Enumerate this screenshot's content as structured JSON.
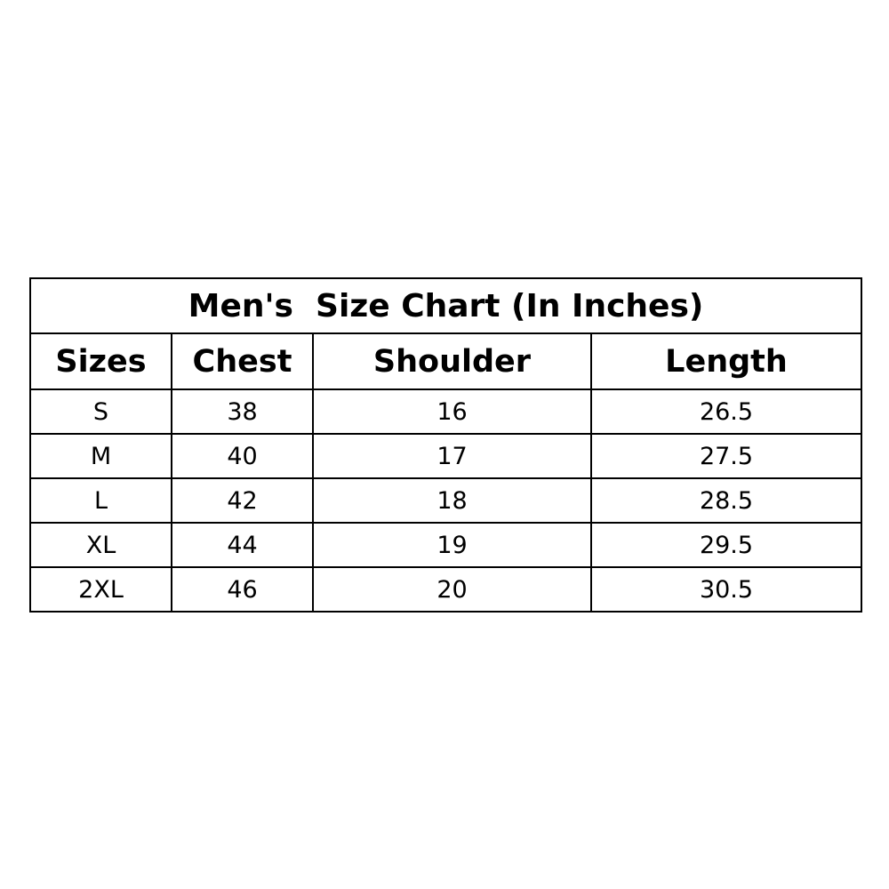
{
  "chart_data": {
    "type": "table",
    "title": "Men's  Size Chart (In Inches)",
    "columns": [
      "Sizes",
      "Chest",
      "Shoulder",
      "Length"
    ],
    "rows": [
      [
        "S",
        "38",
        "16",
        "26.5"
      ],
      [
        "M",
        "40",
        "17",
        "27.5"
      ],
      [
        "L",
        "42",
        "18",
        "28.5"
      ],
      [
        "XL",
        "44",
        "19",
        "29.5"
      ],
      [
        "2XL",
        "46",
        "20",
        "30.5"
      ]
    ]
  }
}
